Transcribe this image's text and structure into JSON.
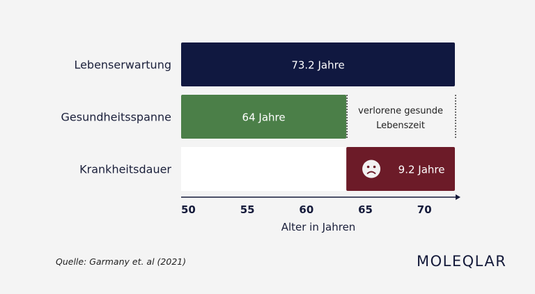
{
  "chart_data": {
    "type": "bar",
    "orientation": "horizontal",
    "categories": [
      "Lebenserwartung",
      "Gesundheitsspanne",
      "Krankheitsdauer"
    ],
    "bars": [
      {
        "category": "Lebenserwartung",
        "start": 50,
        "end": 73.2,
        "label": "73.2 Jahre",
        "color": "#101840"
      },
      {
        "category": "Gesundheitsspanne",
        "start": 50,
        "end": 64,
        "label": "64 Jahre",
        "color": "#4b7f48"
      },
      {
        "category": "Krankheitsdauer",
        "start": 64,
        "end": 73.2,
        "label": "9.2 Jahre",
        "color": "#6c1b28",
        "icon": "sad-face-icon",
        "white_background_from": 50
      }
    ],
    "annotation": {
      "lines": [
        "verlorene gesunde",
        "Lebenszeit"
      ],
      "from": 64,
      "to": 73.2,
      "category": "Gesundheitsspanne"
    },
    "xticks": [
      50,
      55,
      60,
      65,
      70
    ],
    "xlim": [
      50,
      73.2
    ],
    "xlabel": "Alter in Jahren",
    "ylabel": "",
    "title": ""
  },
  "source": "Quelle: Garmany et. al (2021)",
  "logo": "MOLEQLAR"
}
